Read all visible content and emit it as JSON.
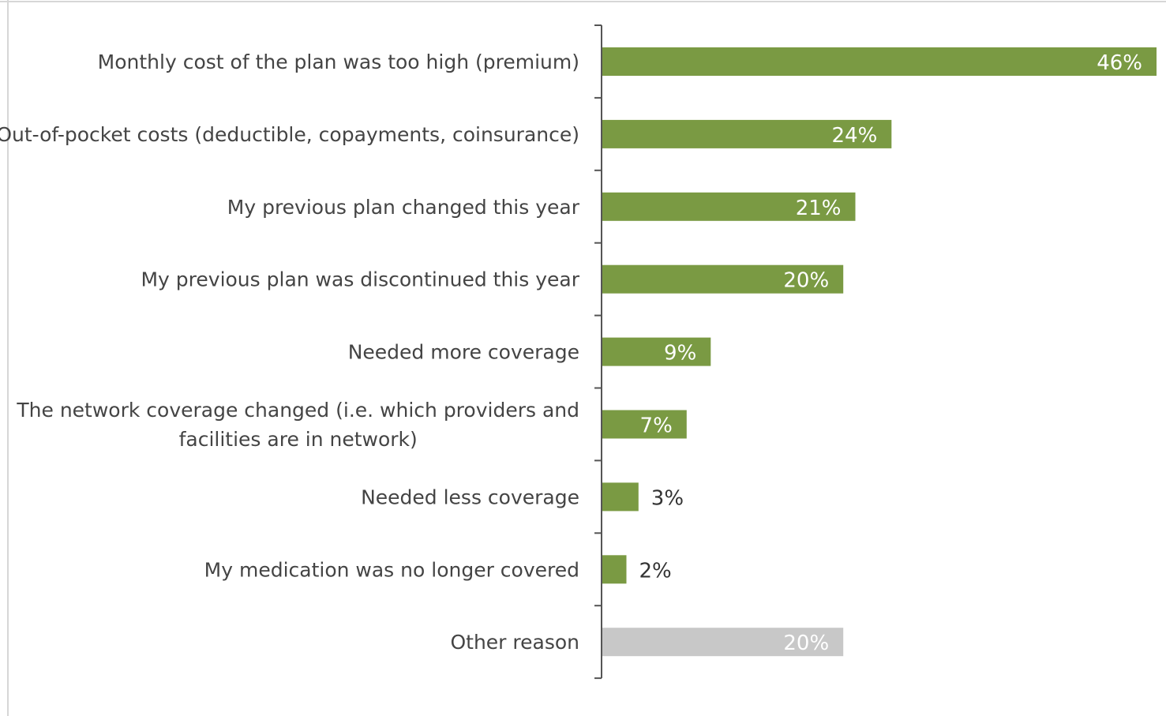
{
  "chart_data": {
    "type": "bar",
    "orientation": "horizontal",
    "title": "",
    "xlabel": "",
    "ylabel": "",
    "xlim": [
      0,
      46
    ],
    "value_suffix": "%",
    "grid": false,
    "legend": "none",
    "colors": {
      "primary": "#7a9a43",
      "other": "#c8c8c8",
      "label_inside": "#ffffff",
      "label_outside": "#333333",
      "category_text": "#444444",
      "axis": "#555555"
    },
    "categories": [
      "Monthly cost of the plan was too high (premium)",
      "Out-of-pocket costs (deductible, copayments, coinsurance)",
      "My previous plan changed this year",
      "My previous plan was discontinued this year",
      "Needed more coverage",
      "The network coverage changed (i.e. which providers and facilities are in network)",
      "Needed less coverage",
      "My medication was no longer covered",
      "Other reason"
    ],
    "category_display_lines": [
      [
        "Monthly cost of the plan was too high (premium)"
      ],
      [
        "Out-of-pocket costs (deductible, copayments, coinsurance)"
      ],
      [
        "My previous plan changed this year"
      ],
      [
        "My previous plan was discontinued this year"
      ],
      [
        "Needed more coverage"
      ],
      [
        "The network coverage changed (i.e. which providers and",
        "facilities are in network)"
      ],
      [
        "Needed less coverage"
      ],
      [
        "My medication was no longer covered"
      ],
      [
        "Other reason"
      ]
    ],
    "values": [
      46,
      24,
      21,
      20,
      9,
      7,
      3,
      2,
      20
    ],
    "value_labels": [
      "46%",
      "24%",
      "21%",
      "20%",
      "9%",
      "7%",
      "3%",
      "2%",
      "20%"
    ],
    "label_inside": [
      true,
      true,
      true,
      true,
      true,
      true,
      false,
      false,
      true
    ],
    "bar_color_keys": [
      "primary",
      "primary",
      "primary",
      "primary",
      "primary",
      "primary",
      "primary",
      "primary",
      "other"
    ]
  }
}
